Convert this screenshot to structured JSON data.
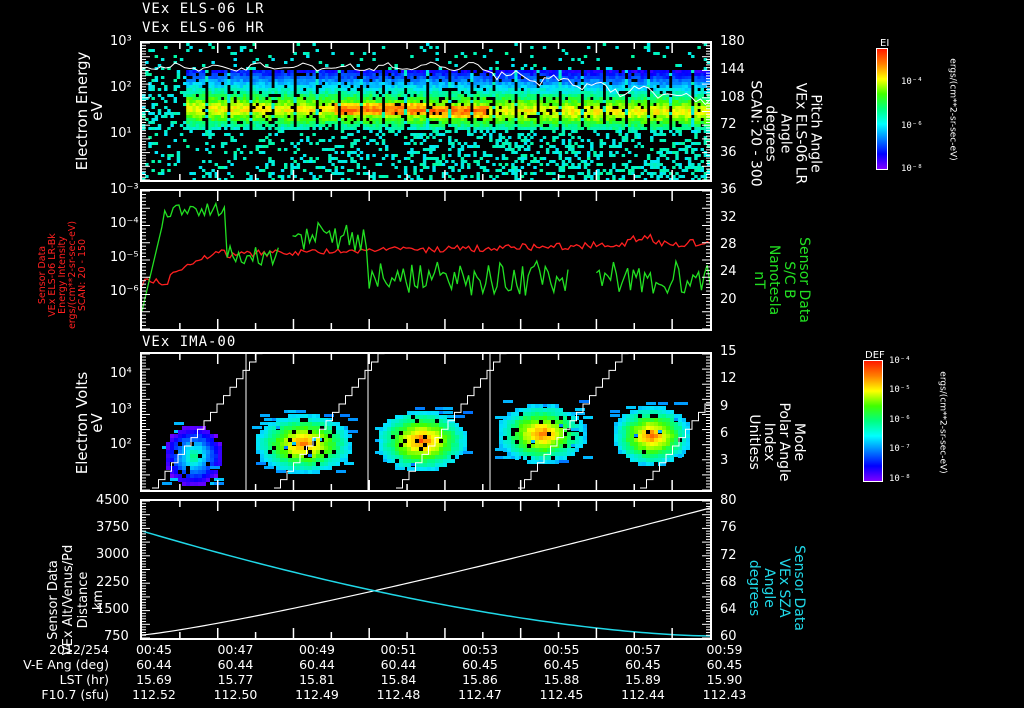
{
  "titles": {
    "panel1_line1": "VEx ELS-06 LR",
    "panel1_line2": "VEx ELS-06 HR",
    "panel3": "VEx IMA-00"
  },
  "colors": {
    "background": "#000000",
    "axis": "#ffffff",
    "red_series": "#ff2020",
    "green_series": "#22e022",
    "cyan_series": "#20d8e8",
    "white_series": "#ffffff"
  },
  "panel1": {
    "ylabel_left": [
      "Electron Energy",
      "eV"
    ],
    "yticks_left": [
      "10³",
      "10²",
      "10¹"
    ],
    "ylabel_right": [
      "Pitch Angle",
      "VEx ELS-06 LR",
      "Angle",
      "degrees",
      "SCAN: 20 - 300"
    ],
    "yticks_right": [
      "180",
      "144",
      "108",
      "72",
      "36"
    ],
    "colorbar": {
      "label": "EI",
      "ticks": [
        "10⁻⁴",
        "10⁻⁶",
        "10⁻⁸"
      ],
      "unit": "ergs/(cm**2-sr-sec-eV)"
    }
  },
  "panel2": {
    "ylabel_left": [
      "Sensor Data",
      "VEx ELS-06 LR-Bk",
      "Energy Intensity",
      "ergs/(cm**2-sr-sec-eV)",
      "SCAN: 20 - 150"
    ],
    "yticks_left": [
      "10⁻³",
      "10⁻⁴",
      "10⁻⁵",
      "10⁻⁶"
    ],
    "ylabel_right": [
      "Sensor Data",
      "S/C B",
      "Nanotesla",
      "nT"
    ],
    "yticks_right": [
      "36",
      "32",
      "28",
      "24",
      "20"
    ]
  },
  "panel3": {
    "ylabel_left": [
      "Electron Volts",
      "eV"
    ],
    "yticks_left": [
      "10⁴",
      "10³",
      "10²"
    ],
    "ylabel_right": [
      "Mode",
      "Polar Angle",
      "Index",
      "Unitless"
    ],
    "yticks_right": [
      "15",
      "12",
      "9",
      "6",
      "3"
    ],
    "colorbar": {
      "label": "DEF",
      "ticks": [
        "10⁻⁴",
        "10⁻⁵",
        "10⁻⁶",
        "10⁻⁷",
        "10⁻⁸"
      ],
      "unit": "ergs/(cm**2-sr-sec-eV)"
    }
  },
  "panel4": {
    "ylabel_left": [
      "Sensor Data",
      "VEx Alt/Venus/Pd",
      "Distance",
      "km"
    ],
    "yticks_left": [
      "4500",
      "3750",
      "3000",
      "2250",
      "1500",
      "750"
    ],
    "ylabel_right": [
      "Sensor Data",
      "VEx SZA",
      "Angle",
      "degrees"
    ],
    "yticks_right": [
      "80",
      "76",
      "72",
      "68",
      "64",
      "60"
    ]
  },
  "footer": {
    "row_labels": [
      "2012/254",
      "V-E Ang (deg)",
      "LST (hr)",
      "F10.7 (sfu)"
    ],
    "columns": [
      {
        "time": "00:45",
        "ve_ang": "60.44",
        "lst": "15.69",
        "f107": "112.52"
      },
      {
        "time": "00:47",
        "ve_ang": "60.44",
        "lst": "15.77",
        "f107": "112.50"
      },
      {
        "time": "00:49",
        "ve_ang": "60.44",
        "lst": "15.81",
        "f107": "112.49"
      },
      {
        "time": "00:51",
        "ve_ang": "60.44",
        "lst": "15.84",
        "f107": "112.48"
      },
      {
        "time": "00:53",
        "ve_ang": "60.45",
        "lst": "15.86",
        "f107": "112.47"
      },
      {
        "time": "00:55",
        "ve_ang": "60.45",
        "lst": "15.88",
        "f107": "112.45"
      },
      {
        "time": "00:57",
        "ve_ang": "60.45",
        "lst": "15.89",
        "f107": "112.44"
      },
      {
        "time": "00:59",
        "ve_ang": "60.45",
        "lst": "15.90",
        "f107": "112.43"
      }
    ]
  },
  "chart_data": [
    {
      "type": "heatmap",
      "title": "VEx ELS-06 LR / VEx ELS-06 HR",
      "xlabel": "UT 2012/254",
      "x": [
        "00:45",
        "00:47",
        "00:49",
        "00:51",
        "00:53",
        "00:55",
        "00:57",
        "00:59"
      ],
      "ylabel": "Electron Energy (eV)",
      "yscale": "log",
      "ylim": [
        1,
        1000
      ],
      "y2label": "Pitch Angle (degrees)",
      "y2lim": [
        0,
        180
      ],
      "colorbar": {
        "label": "EI",
        "unit": "ergs/(cm**2-sr-sec-eV)",
        "range": [
          1e-08,
          0.001
        ]
      },
      "annotations": [
        "Peak flux band near 30 eV",
        "White pitch-angle line ~140 deg then decreasing to ~100 deg after 00:54"
      ]
    },
    {
      "type": "line",
      "title": "",
      "x": [
        "00:45",
        "00:46",
        "00:47",
        "00:48",
        "00:49",
        "00:50",
        "00:51",
        "00:52",
        "00:53",
        "00:54",
        "00:55",
        "00:56",
        "00:57",
        "00:58",
        "00:59",
        "01:00"
      ],
      "series": [
        {
          "name": "VEx ELS-06 LR-Bk Energy Intensity (ergs/(cm**2-sr-sec-eV))",
          "axis": "left",
          "color": "#ff2020",
          "values": [
            2e-06,
            8e-06,
            1.5e-05,
            1.6e-05,
            1.3e-05,
            1.4e-05,
            1.6e-05,
            1.8e-05,
            2e-05,
            2.2e-05,
            2.3e-05,
            2.6e-05,
            3e-05,
            3.3e-05,
            2.8e-05,
            3e-05
          ]
        },
        {
          "name": "S/C B (nT)",
          "axis": "right",
          "color": "#22e022",
          "values": [
            18,
            35,
            34.5,
            28,
            30.5,
            25,
            26,
            25.5,
            24,
            23,
            24,
            22.5,
            23,
            22,
            25,
            24
          ]
        }
      ],
      "ylabel": "Energy Intensity",
      "yscale": "log",
      "ylim": [
        1e-07,
        0.001
      ],
      "y2label": "S/C B (nT)",
      "y2lim": [
        16,
        36
      ]
    },
    {
      "type": "heatmap",
      "title": "VEx IMA-00",
      "x": [
        "00:45",
        "00:47",
        "00:49",
        "00:51",
        "00:53",
        "00:55",
        "00:57",
        "00:59"
      ],
      "ylabel": "Electron Volts (eV)",
      "yscale": "log",
      "ylim": [
        10,
        30000
      ],
      "y2label": "Mode Polar Angle Index (Unitless)",
      "y2lim": [
        0,
        15
      ],
      "colorbar": {
        "label": "DEF",
        "unit": "ergs/(cm**2-sr-sec-eV)",
        "range": [
          1e-08,
          0.0001
        ]
      },
      "annotations": [
        "Five ion bursts near 100-300 eV at ~00:46, 00:49, 00:52.5, 00:56, 00:59.5",
        "White staircase polar angle index sweeps 0-15 repeating"
      ]
    },
    {
      "type": "line",
      "title": "",
      "x": [
        "00:45",
        "00:47",
        "00:49",
        "00:51",
        "00:53",
        "00:55",
        "00:57",
        "00:59",
        "01:00"
      ],
      "series": [
        {
          "name": "VEx Alt/Venus/Pd Distance (km)",
          "axis": "left",
          "color": "#ffffff",
          "values": [
            780,
            1050,
            1400,
            1800,
            2300,
            2850,
            3400,
            3950,
            4300
          ]
        },
        {
          "name": "VEx SZA Angle (degrees)",
          "axis": "right",
          "color": "#20d8e8",
          "values": [
            76.7,
            73.5,
            70.5,
            67.8,
            65.5,
            63.7,
            62.3,
            61.0,
            60.3
          ]
        }
      ],
      "ylabel": "Distance (km)",
      "ylim": [
        750,
        4500
      ],
      "y2label": "SZA (degrees)",
      "y2lim": [
        60,
        80
      ]
    }
  ]
}
